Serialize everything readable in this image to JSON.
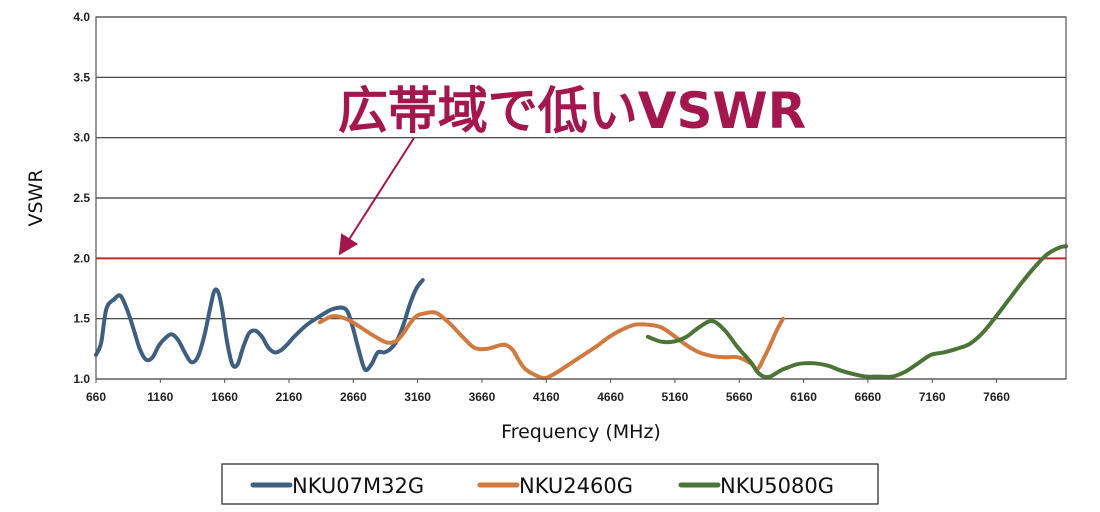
{
  "chart_data": {
    "type": "line",
    "xlabel": "Frequency (MHz)",
    "ylabel": "VSWR",
    "xlim": [
      660,
      8200
    ],
    "ylim": [
      1.0,
      4.0
    ],
    "x_ticks": [
      "660",
      "1160",
      "1660",
      "2160",
      "2660",
      "3160",
      "3660",
      "4160",
      "4660",
      "5160",
      "5660",
      "6160",
      "6660",
      "7160",
      "7660"
    ],
    "y_ticks": [
      "1.0",
      "1.5",
      "2.0",
      "2.5",
      "3.0",
      "3.5",
      "4.0"
    ],
    "grid": "horizontal",
    "legend_position": "bottom",
    "reference_line": {
      "y": 2.0,
      "color": "#c0282c"
    },
    "annotation": {
      "text": "広帯域で低いVSWR",
      "target": {
        "x": 2400,
        "y": 2.0
      }
    },
    "series": [
      {
        "name": "NKU07M32G",
        "color": "#3e5f80",
        "x": [
          660,
          700,
          740,
          800,
          850,
          900,
          950,
          1000,
          1050,
          1100,
          1150,
          1200,
          1250,
          1300,
          1350,
          1400,
          1450,
          1500,
          1550,
          1580,
          1610,
          1640,
          1680,
          1720,
          1760,
          1800,
          1850,
          1900,
          1950,
          2000,
          2050,
          2100,
          2150,
          2200,
          2300,
          2400,
          2500,
          2600,
          2650,
          2700,
          2750,
          2800,
          2850,
          2900,
          2950,
          3000,
          3050,
          3100,
          3150,
          3200
        ],
        "y": [
          1.2,
          1.3,
          1.58,
          1.66,
          1.69,
          1.58,
          1.42,
          1.25,
          1.16,
          1.18,
          1.28,
          1.34,
          1.37,
          1.32,
          1.22,
          1.14,
          1.18,
          1.35,
          1.6,
          1.73,
          1.72,
          1.58,
          1.3,
          1.12,
          1.12,
          1.25,
          1.38,
          1.4,
          1.35,
          1.26,
          1.22,
          1.24,
          1.29,
          1.35,
          1.45,
          1.52,
          1.58,
          1.58,
          1.45,
          1.25,
          1.08,
          1.12,
          1.22,
          1.22,
          1.25,
          1.32,
          1.45,
          1.62,
          1.75,
          1.82
        ]
      },
      {
        "name": "NKU2460G",
        "color": "#d07a3f",
        "x": [
          2400,
          2500,
          2600,
          2700,
          2800,
          2900,
          2950,
          3000,
          3050,
          3100,
          3150,
          3200,
          3300,
          3400,
          3500,
          3600,
          3700,
          3800,
          3850,
          3900,
          3950,
          4000,
          4100,
          4160,
          4250,
          4350,
          4450,
          4550,
          4650,
          4750,
          4850,
          4950,
          5050,
          5150,
          5250,
          5350,
          5450,
          5550,
          5650,
          5750,
          5800,
          5850,
          5900,
          5950,
          6000
        ],
        "y": [
          1.47,
          1.52,
          1.5,
          1.44,
          1.37,
          1.31,
          1.3,
          1.32,
          1.38,
          1.46,
          1.52,
          1.54,
          1.55,
          1.47,
          1.36,
          1.26,
          1.25,
          1.28,
          1.28,
          1.24,
          1.15,
          1.08,
          1.02,
          1.01,
          1.06,
          1.13,
          1.2,
          1.27,
          1.35,
          1.41,
          1.45,
          1.45,
          1.43,
          1.36,
          1.28,
          1.22,
          1.19,
          1.18,
          1.18,
          1.13,
          1.08,
          1.17,
          1.28,
          1.4,
          1.5
        ]
      },
      {
        "name": "NKU5080G",
        "color": "#4b7536",
        "x": [
          4950,
          5050,
          5150,
          5250,
          5350,
          5450,
          5550,
          5650,
          5750,
          5800,
          5850,
          5900,
          5950,
          6000,
          6050,
          6100,
          6160,
          6250,
          6350,
          6450,
          6550,
          6650,
          6750,
          6850,
          6950,
          7050,
          7150,
          7250,
          7350,
          7450,
          7550,
          7650,
          7750,
          7850,
          7950,
          8050,
          8150,
          8200
        ],
        "y": [
          1.35,
          1.31,
          1.31,
          1.35,
          1.43,
          1.48,
          1.4,
          1.26,
          1.14,
          1.06,
          1.02,
          1.02,
          1.05,
          1.08,
          1.1,
          1.12,
          1.13,
          1.13,
          1.11,
          1.07,
          1.04,
          1.02,
          1.02,
          1.02,
          1.06,
          1.13,
          1.2,
          1.22,
          1.25,
          1.29,
          1.38,
          1.51,
          1.65,
          1.79,
          1.92,
          2.03,
          2.09,
          2.1
        ]
      }
    ]
  }
}
